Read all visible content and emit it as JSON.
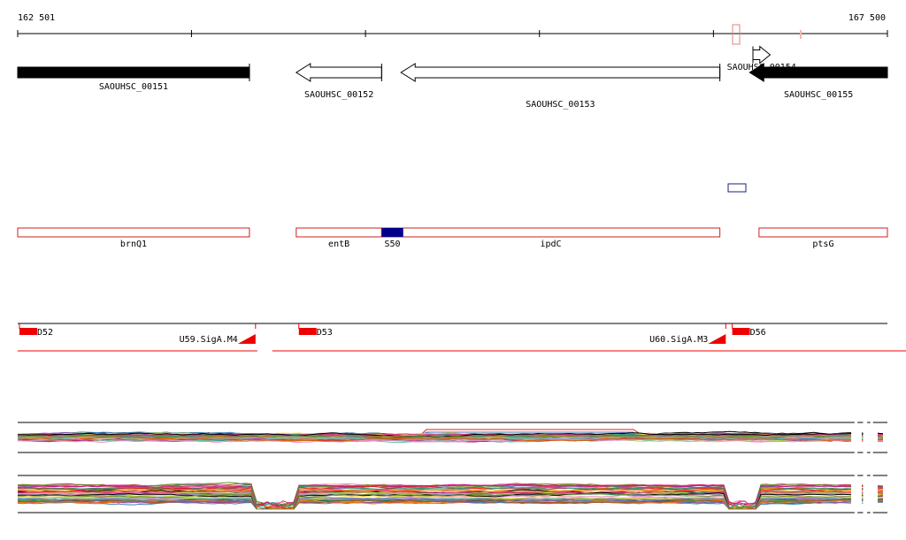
{
  "ruler": {
    "start_label": "162 501",
    "end_label": "167 500",
    "start": 162501,
    "end": 167500,
    "tick_step": 1000
  },
  "genes": [
    {
      "name": "SAOUHSC_00151",
      "start": 162501,
      "end": 163833,
      "strand": "+",
      "filled": true
    },
    {
      "name": "SAOUHSC_00152",
      "start": 164102,
      "end": 164593,
      "strand": "-",
      "filled": false
    },
    {
      "name": "SAOUHSC_00153",
      "start": 164704,
      "end": 166537,
      "strand": "-",
      "filled": false
    },
    {
      "name": "SAOUHSC_00154",
      "start": 166727,
      "end": 166826,
      "strand": "+",
      "filled": false
    },
    {
      "name": "SAOUHSC_00155",
      "start": 166708,
      "end": 167500,
      "strand": "-",
      "filled": true
    }
  ],
  "features": [
    {
      "name": "brnQ1",
      "start": 162501,
      "end": 163833
    },
    {
      "name": "entB",
      "start": 164102,
      "end": 164593
    },
    {
      "name": "ipdC",
      "start": 164593,
      "end": 166537
    },
    {
      "name": "ptsG",
      "start": 166762,
      "end": 167500
    }
  ],
  "feature_highlight": {
    "name": "S50",
    "start": 164593,
    "end": 164717,
    "color": "#00008b"
  },
  "transcripts": [
    {
      "start_label": "D52",
      "end_label": "U59.SigA.M4",
      "start": 162511,
      "end": 163868
    },
    {
      "start_label": "D53",
      "end_label": "U60.SigA.M3",
      "start": 164117,
      "end": 166571
    },
    {
      "start_label": "D56",
      "end_label": "",
      "start": 166608,
      "end": 167500
    }
  ],
  "colors": {
    "gene_fill": "#000000",
    "feature_outline": "#cc2222",
    "transcript": "#ee0000",
    "highlight": "#00008b",
    "track_palette": [
      "#e41a1c",
      "#377eb8",
      "#4daf4a",
      "#984ea3",
      "#ff7f00",
      "#a65628",
      "#f781bf",
      "#999999",
      "#66c2a5",
      "#fc8d62",
      "#8da0cb",
      "#e78ac3",
      "#a6d854",
      "#ffd92f",
      "#1b9e77",
      "#d95f02",
      "#7570b3",
      "#e7298a",
      "#000000",
      "#6b8e23",
      "#008b8b",
      "#b8860b",
      "#2f4f4f",
      "#c71585"
    ]
  },
  "expression": {
    "series_count": 44,
    "seed": 7,
    "panel1_dip_ranges": [],
    "panel2_dip_ranges": [
      [
        163868,
        164117
      ],
      [
        166571,
        166770
      ]
    ],
    "gap_ranges": [
      [
        167311,
        167328
      ],
      [
        167360,
        167383
      ],
      [
        167402,
        167417
      ]
    ]
  }
}
